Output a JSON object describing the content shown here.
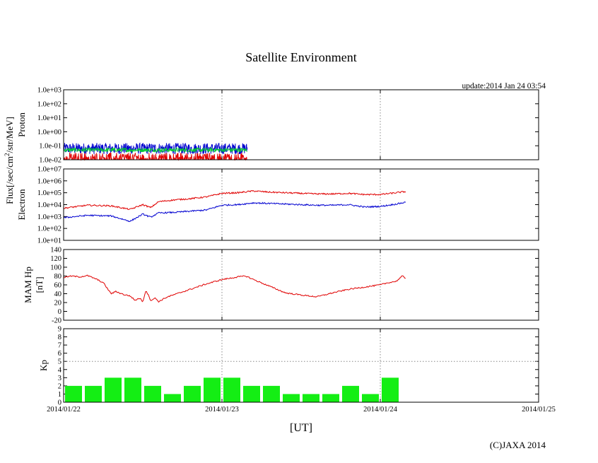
{
  "title": "Satellite Environment",
  "update_label": "update:2014 Jan 24 03:54",
  "xlabel": "[UT]",
  "copyright": "(C)JAXA 2014",
  "flux_label_base": "Flux[/sec/cm",
  "flux_label_sup": "2",
  "flux_label_tail": "/str/MeV]",
  "x_tick_labels": [
    "2014/01/22",
    "2014/01/23",
    "2014/01/24",
    "2014/01/25"
  ],
  "colors": {
    "red": "#e00000",
    "blue": "#0000d0",
    "green": "#00cc33",
    "kp_bar": "#14ee14"
  },
  "chart_data": [
    {
      "type": "line",
      "panel": "proton",
      "ylabel": "Proton",
      "yscale": "log",
      "ylim_exp": [
        -2,
        3
      ],
      "ytick_labels": [
        "1.0e-02",
        "1.0e-01",
        "1.0e+00",
        "1.0e+01",
        "1.0e+02",
        "1.0e+03"
      ],
      "xlim_days": [
        0,
        3
      ],
      "data_end_day": 1.16,
      "series": [
        {
          "name": "proton-blue",
          "color": "blue",
          "level_exp": -1.2,
          "noise_exp": 0.4
        },
        {
          "name": "proton-green",
          "color": "green",
          "level_exp": -1.3,
          "noise_exp": 0.15
        },
        {
          "name": "proton-red",
          "color": "red",
          "level_exp": -1.8,
          "noise_exp": 0.3
        }
      ]
    },
    {
      "type": "line",
      "panel": "electron",
      "ylabel": "Electron",
      "yscale": "log",
      "ylim_exp": [
        1,
        7
      ],
      "ytick_labels": [
        "1.0e+01",
        "1.0e+02",
        "1.0e+03",
        "1.0e+04",
        "1.0e+05",
        "1.0e+06",
        "1.0e+07"
      ],
      "xlim_days": [
        0,
        3
      ],
      "series": [
        {
          "name": "electron-red",
          "color": "red",
          "x": [
            0,
            0.15,
            0.3,
            0.42,
            0.5,
            0.55,
            0.6,
            0.7,
            0.8,
            0.9,
            1.0,
            1.1,
            1.2,
            1.3,
            1.4,
            1.5,
            1.6,
            1.7,
            1.8,
            1.9,
            2.0,
            2.1,
            2.16
          ],
          "log": [
            3.7,
            3.95,
            3.9,
            3.6,
            4.0,
            3.75,
            4.25,
            4.4,
            4.5,
            4.65,
            4.95,
            5.0,
            5.15,
            5.05,
            5.0,
            4.95,
            4.9,
            4.9,
            4.95,
            4.85,
            4.85,
            5.0,
            5.1
          ]
        },
        {
          "name": "electron-blue",
          "color": "blue",
          "x": [
            0,
            0.15,
            0.3,
            0.42,
            0.5,
            0.55,
            0.6,
            0.7,
            0.8,
            0.9,
            1.0,
            1.1,
            1.2,
            1.3,
            1.4,
            1.5,
            1.6,
            1.7,
            1.8,
            1.9,
            2.0,
            2.1,
            2.16
          ],
          "log": [
            2.9,
            3.1,
            3.05,
            2.6,
            3.2,
            2.95,
            3.3,
            3.35,
            3.45,
            3.55,
            3.95,
            4.0,
            4.15,
            4.1,
            4.05,
            4.0,
            3.95,
            3.95,
            4.0,
            3.8,
            3.85,
            4.05,
            4.2
          ]
        }
      ]
    },
    {
      "type": "line",
      "panel": "mam",
      "ylabel": "MAM Hp",
      "ylabel2": "[nT]",
      "ylim": [
        -20,
        140
      ],
      "yticks": [
        -20,
        0,
        20,
        40,
        60,
        80,
        100,
        120,
        140
      ],
      "xlim_days": [
        0,
        3
      ],
      "series": [
        {
          "name": "mam-hp",
          "color": "red",
          "x": [
            0,
            0.05,
            0.1,
            0.15,
            0.2,
            0.25,
            0.3,
            0.33,
            0.38,
            0.42,
            0.45,
            0.48,
            0.5,
            0.52,
            0.55,
            0.58,
            0.6,
            0.65,
            0.7,
            0.8,
            0.9,
            1.0,
            1.1,
            1.15,
            1.2,
            1.3,
            1.4,
            1.5,
            1.6,
            1.7,
            1.8,
            1.9,
            2.0,
            2.05,
            2.1,
            2.14,
            2.16
          ],
          "y": [
            77,
            80,
            78,
            81,
            74,
            65,
            40,
            45,
            38,
            35,
            25,
            30,
            22,
            48,
            25,
            30,
            22,
            32,
            38,
            50,
            62,
            72,
            78,
            80,
            72,
            57,
            42,
            37,
            33,
            42,
            50,
            55,
            60,
            65,
            68,
            80,
            75
          ]
        }
      ]
    },
    {
      "type": "bar",
      "panel": "kp",
      "ylabel": "Kp",
      "ylim": [
        0,
        9
      ],
      "yticks": [
        0,
        1,
        2,
        3,
        4,
        5,
        6,
        7,
        8,
        9
      ],
      "xlim_days": [
        0,
        3
      ],
      "bar_width_days": 0.125,
      "values": [
        2,
        2,
        3,
        3,
        2,
        1,
        2,
        3,
        3,
        2,
        2,
        1,
        1,
        1,
        2,
        1,
        3
      ]
    }
  ]
}
